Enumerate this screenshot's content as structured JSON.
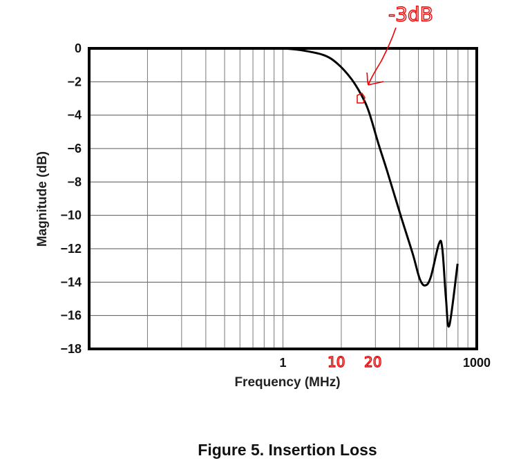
{
  "chart_data": {
    "type": "line",
    "title": "",
    "xlabel": "Frequency (MHz)",
    "ylabel": "Magnitude (dB)",
    "xscale": "log",
    "xlim": [
      0.001,
      1000
    ],
    "ylim": [
      -18,
      0
    ],
    "grid": true,
    "x_tick_labels": [
      {
        "value": 1,
        "label": "1"
      },
      {
        "value": 1000,
        "label": "1000"
      }
    ],
    "y_tick_labels": [
      "0",
      "−2",
      "−4",
      "−6",
      "−8",
      "−10",
      "−12",
      "−14",
      "−16",
      "−18"
    ],
    "y_ticks": [
      0,
      -2,
      -4,
      -6,
      -8,
      -10,
      -12,
      -14,
      -16,
      -18
    ],
    "series": [
      {
        "color": "#000000",
        "x": [
          0.001,
          1,
          1.85,
          4.25,
          6.9,
          11.3,
          16.4,
          21.4,
          30,
          41.4,
          67.5,
          102,
          131,
          159,
          194,
          260,
          293,
          334,
          376,
          505
        ],
        "y": [
          0,
          0,
          -0.1,
          -0.4,
          -0.9,
          -1.8,
          -2.8,
          -3.8,
          -5.7,
          -7.4,
          -10.1,
          -12.3,
          -13.8,
          -14.2,
          -13.7,
          -11.7,
          -12.0,
          -15.0,
          -16.6,
          -12.9
        ]
      }
    ],
    "annotations": {
      "color": "#e00000",
      "label_3db": "-3dB",
      "tick_10": "10",
      "tick_20": "20"
    }
  },
  "caption": "Figure 5. Insertion Loss"
}
